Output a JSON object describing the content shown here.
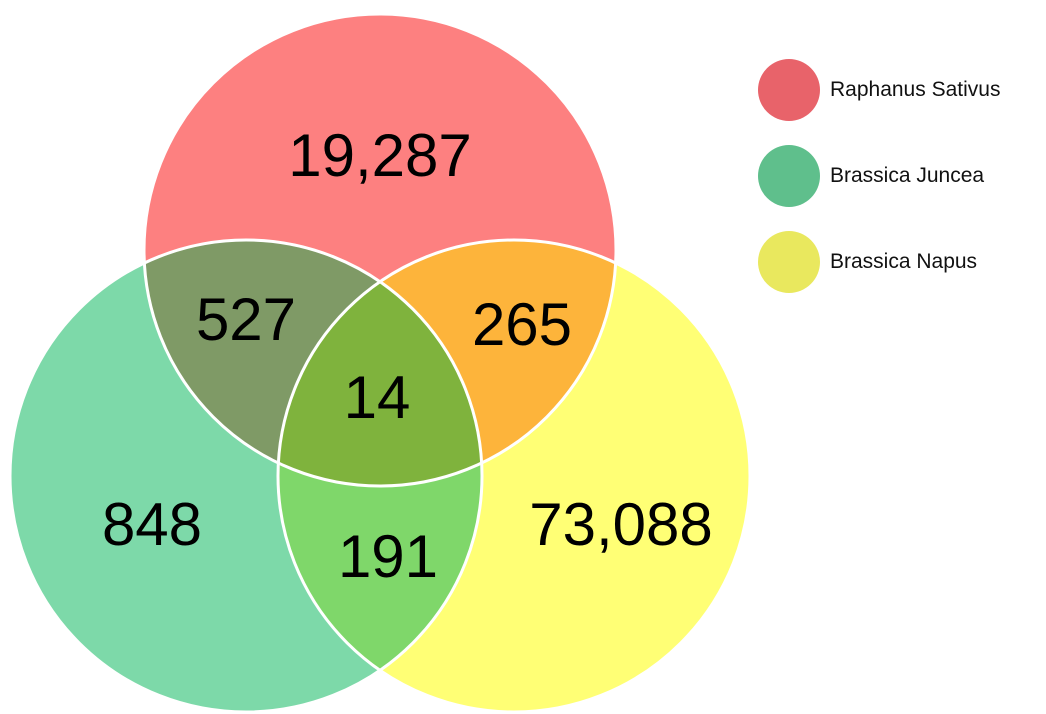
{
  "sets": [
    {
      "name": "Raphanus Sativus",
      "color": "#fd6a6a",
      "legend_color": "#e8636a"
    },
    {
      "name": "Brassica Juncea",
      "color": "#5ccf94",
      "legend_color": "#5fbf8c"
    },
    {
      "name": "Brassica Napus",
      "color": "#ffff66",
      "legend_color": "#e9e85e"
    }
  ],
  "regions": {
    "raphanus_only": "19,287",
    "juncea_only": "848",
    "napus_only": "73,088",
    "raphanus_juncea": "527",
    "raphanus_napus": "265",
    "juncea_napus": "191",
    "all_three": "14"
  },
  "region_colors": {
    "raphanus_juncea": "#7f9a66",
    "raphanus_napus": "#fdb43b",
    "juncea_napus": "#7fd76a",
    "all_three": "#7fb33d"
  }
}
